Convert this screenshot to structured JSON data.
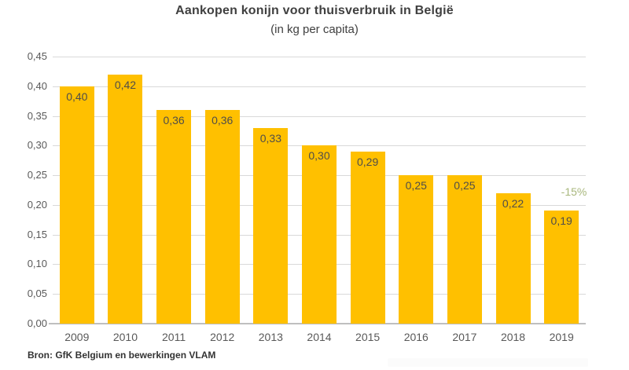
{
  "chart_data": {
    "type": "bar",
    "title": "Aankopen konijn voor thuisverbruik in België",
    "subtitle": "(in kg per capita)",
    "categories": [
      "2009",
      "2010",
      "2011",
      "2012",
      "2013",
      "2014",
      "2015",
      "2016",
      "2017",
      "2018",
      "2019"
    ],
    "values": [
      0.4,
      0.42,
      0.36,
      0.36,
      0.33,
      0.3,
      0.29,
      0.25,
      0.25,
      0.22,
      0.19
    ],
    "value_labels": [
      "0,40",
      "0,42",
      "0,36",
      "0,36",
      "0,33",
      "0,30",
      "0,29",
      "0,25",
      "0,25",
      "0,22",
      "0,19"
    ],
    "xlabel": "",
    "ylabel": "",
    "ylim": [
      0,
      0.45
    ],
    "ytick_labels": [
      "0,45",
      "0,40",
      "0,35",
      "0,30",
      "0,25",
      "0,20",
      "0,15",
      "0,10",
      "0,05",
      "0,00"
    ],
    "grid": true,
    "legend_position": "none",
    "bar_color": "#FFC000",
    "gridline_color": "#d9d9d9",
    "annotation": {
      "text": "-15%",
      "color": "#a8b77c"
    },
    "source": "Bron: GfK Belgium en bewerkingen VLAM"
  }
}
